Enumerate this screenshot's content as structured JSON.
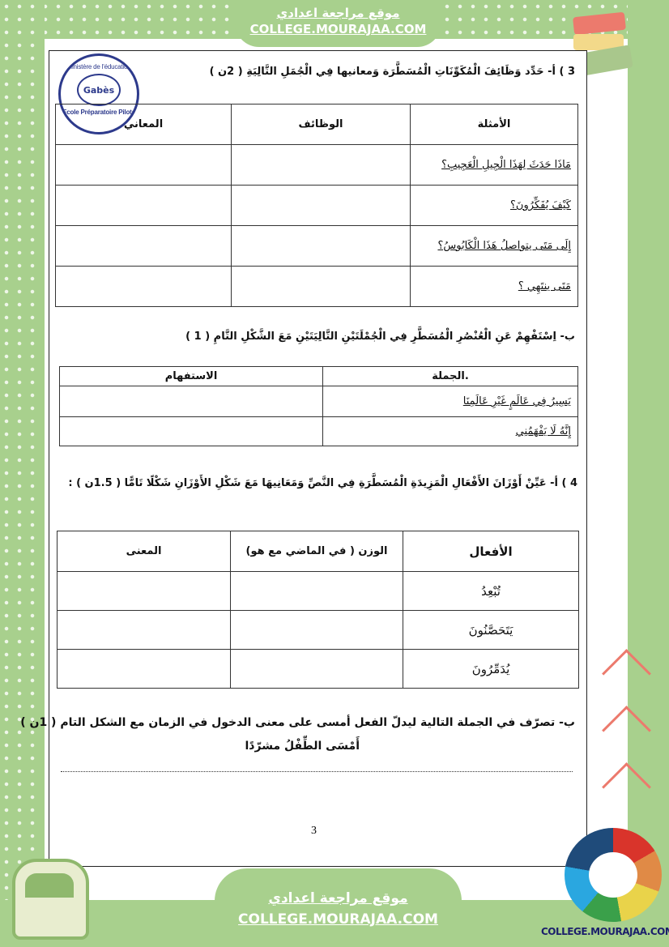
{
  "banner": {
    "arabic": "موقع مراجعة اعدادي",
    "url": "COLLEGE.MOURAJAA.COM"
  },
  "footer": {
    "arabic": "موقع مراجعة اعدادي",
    "url": "COLLEGE.MOURAJAA.COM",
    "logo_text": "COLLEGE.MOURAJAA.COM"
  },
  "stamp": {
    "top": "Ministère de l'éducation",
    "center": "Gabès",
    "bottom": "Ecole Préparatoire Pilote"
  },
  "q3a": {
    "title": "3 )  أ- حَدِّد وَظَائِفَ الْمُكَوِّنَاتِ الْمُسَطَّرَة وَمعانيها فِي الْجُمَلِ التَّالِيَةِ ( 2ن )",
    "headers": [
      "الأمثلة",
      "الوظائف",
      "المعاني"
    ],
    "rows": [
      "مَاذَا حَدَثَ لِهَذَا الْجِيلِ الْعَجِيبِ؟",
      "كَيْفَ يُفَكِّرُونَ؟",
      "إِلَى مَتَى يتواصلُ هَذَا الْكَابُوسُ؟",
      "مَتَى ينتَهِي ؟"
    ]
  },
  "q3b": {
    "title": "ب- اِسْتَفْهِمْ عَنِ الْعُنْصُرِ الْمُسَطَّرِ فِي الْجُمْلَتَيْنِ التَّالِيَتَيْنِ مَعَ الشَّكْلِ التَّامِ ( 1 )",
    "headers": [
      ".الجملة",
      "الاستفهام"
    ],
    "rows": [
      "يَسِيرُ فِي عَالَمٍ غَيْرِ عَالَمِنَا",
      "إِنَّهُ لَا يَفْهَمُنِي"
    ]
  },
  "q4a": {
    "title": "4 ) أ- عَيِّنْ أَوْزَانَ الأَفْعَالِ الْمَزِيدَةِ الْمُسَطَّرَةِ فِي النَّصِّ وَمَعَانِيهَا مَعَ شَكْلِ الأَوْزَانِ شَكْلًا تَامًّا ( 1.5ن ) :",
    "headers": [
      "الأفعال",
      "الوزن ( في الماضي مع هو)",
      "المعنى"
    ],
    "rows": [
      "تُبْعِدُ",
      "يَتَحَصَّنُونَ",
      "يُدَمِّرُونَ"
    ]
  },
  "q4b": {
    "title": "ب- تصرّف في الجملة التالية ليدلّ الفعل أمسى على معنى الدخول في الزمان مع الشكل التام  ( 1ن )",
    "sentence": "أَمْسَى الطِّفْلُ مشرّدًا"
  },
  "page_number": "3",
  "colors": {
    "frame_green": "#a8d08d",
    "logo_text": "#1b1f6b"
  }
}
